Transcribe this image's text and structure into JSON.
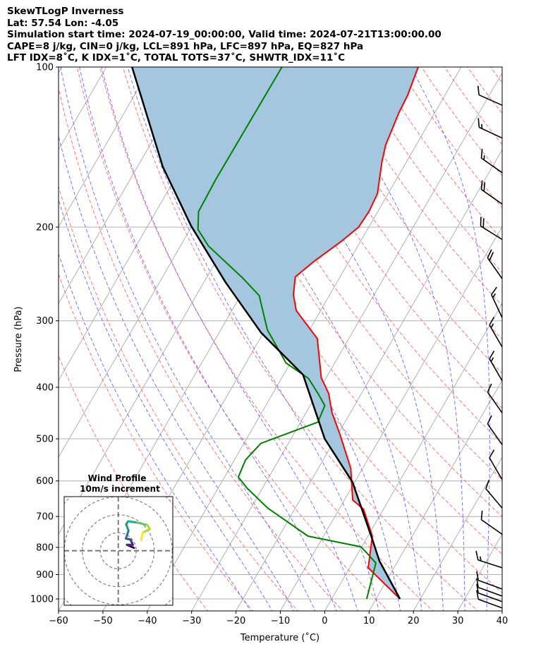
{
  "header": {
    "title": "SkewTLogP Inverness",
    "location": "Lat: 57.54   Lon: -4.05",
    "times": "Simulation start time: 2024-07-19_00:00:00, Valid time: 2024-07-21T13:00:00.00",
    "indices1": "CAPE=8 j/kg, CIN=0 j/kg, LCL=891 hPa, LFC=897 hPa, EQ=827 hPa",
    "indices2": "LFT IDX=8˚C, K IDX=1˚C, TOTAL TOTS=37˚C, SHWTR_IDX=11˚C"
  },
  "chart_data": {
    "type": "line",
    "subtype": "skew-t log-p",
    "xlabel": "Temperature (˚C)",
    "ylabel": "Pressure (hPa)",
    "xlim": [
      -60,
      40
    ],
    "ylim": [
      1053,
      100
    ],
    "x_ticks": [
      "−60",
      "−50",
      "−40",
      "−30",
      "−20",
      "−10",
      "0",
      "10",
      "20",
      "30",
      "40"
    ],
    "x_tick_values": [
      -60,
      -50,
      -40,
      -30,
      -20,
      -10,
      0,
      10,
      20,
      30,
      40
    ],
    "y_ticks": [
      "100",
      "200",
      "300",
      "400",
      "500",
      "600",
      "700",
      "800",
      "900",
      "1000"
    ],
    "y_tick_values": [
      100,
      200,
      300,
      400,
      500,
      600,
      700,
      800,
      900,
      1000
    ],
    "skew_degrees": 30,
    "grid": true,
    "colors": {
      "temperature": "#ff0000",
      "dewpoint": "#008000",
      "parcel": "#000000",
      "fill": "#a4c6df",
      "isotherm": "#b0b0b0",
      "dry_adiabat": "#ff6666",
      "moist_adiabat": "#6666ff"
    },
    "dry_adiabat_theta_c": [
      -30,
      -20,
      -10,
      0,
      10,
      20,
      30,
      40,
      50,
      60,
      70,
      80,
      90,
      100,
      110,
      120,
      130,
      140,
      150,
      160,
      170,
      180,
      190
    ],
    "moist_adiabat_t0_c": [
      -20,
      -15,
      -10,
      -5,
      0,
      5,
      10,
      15,
      20,
      25,
      30,
      35
    ],
    "series": [
      {
        "name": "Temperature",
        "pressure": [
          1000,
          874,
          762,
          678,
          652,
          568,
          492,
          446,
          411,
          384,
          324,
          287,
          268,
          248,
          232,
          213,
          200,
          187,
          173,
          151,
          140,
          122,
          113,
          100
        ],
        "values": [
          15.4,
          4.2,
          1.0,
          -4.5,
          -8.1,
          -12.7,
          -19.4,
          -24.2,
          -27.4,
          -31.1,
          -37.1,
          -45.5,
          -48.2,
          -50.1,
          -47.9,
          -44.4,
          -42.3,
          -42.0,
          -42.4,
          -45.5,
          -46.9,
          -48.1,
          -48.4,
          -49.7
        ]
      },
      {
        "name": "Dewpoint",
        "pressure": [
          1000,
          856,
          818,
          798,
          762,
          675,
          619,
          590,
          548,
          510,
          465,
          433,
          411,
          385,
          360,
          312,
          269,
          249,
          217,
          202,
          187,
          163,
          100
        ],
        "values": [
          7.9,
          5.3,
          1.8,
          -0.2,
          -13.5,
          -26.2,
          -33.5,
          -36.9,
          -37.5,
          -36.2,
          -26.1,
          -26.7,
          -29.8,
          -33.9,
          -41.0,
          -49.5,
          -55.8,
          -61.9,
          -73.7,
          -78.2,
          -80.4,
          -80.7,
          -80.4
        ]
      },
      {
        "name": "Parcel",
        "pressure": [
          1000,
          848,
          769,
          603,
          500,
          379,
          316,
          254,
          199,
          154,
          100
        ],
        "values": [
          15.4,
          5.8,
          1.2,
          -10.5,
          -22.4,
          -35.6,
          -50.5,
          -65.1,
          -80.2,
          -94.3,
          -114.2
        ]
      }
    ],
    "wind_barbs": {
      "units": "kt",
      "pressure": [
        118,
        136,
        158,
        181,
        211,
        250,
        296,
        336,
        389,
        447,
        513,
        597,
        675,
        756,
        874,
        958,
        988,
        1012,
        1040
      ],
      "direction": [
        246,
        245,
        235,
        235,
        238,
        215,
        205,
        210,
        210,
        215,
        215,
        210,
        220,
        235,
        252,
        250,
        250,
        250,
        250
      ],
      "speed": [
        10,
        15,
        15,
        20,
        20,
        20,
        15,
        15,
        15,
        10,
        10,
        10,
        10,
        10,
        15,
        10,
        10,
        10,
        10
      ]
    },
    "hodograph": {
      "title": "Wind Profile",
      "subtitle": "10m/s increment",
      "ring_increment_ms": 10,
      "u": [
        8.7,
        4.8,
        8.1,
        6.8,
        4.2,
        5.7,
        4.4,
        5.5,
        10.7,
        16.2,
        17.5,
        13.6,
        12.7
      ],
      "v": [
        1.6,
        3.3,
        3.3,
        6.2,
        6.8,
        11.1,
        14.7,
        16.4,
        15.6,
        14.3,
        12.0,
        10.1,
        5.9
      ]
    }
  }
}
